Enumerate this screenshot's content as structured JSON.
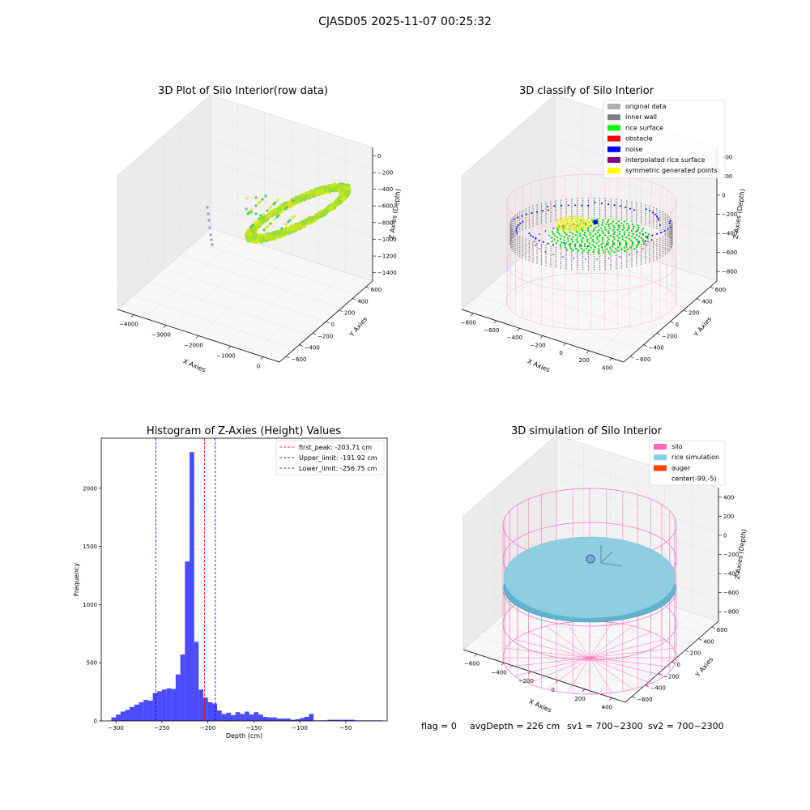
{
  "page": {
    "title": "CJASD05 2025-11-07 00:25:32",
    "footer": {
      "flag": "flag = 0",
      "avg": "avgDepth = 226 cm",
      "sv1": "sv1 = 700~2300",
      "sv2": "sv2 = 700~2300"
    }
  },
  "panels": {
    "raw": {
      "title": "3D Plot of Silo Interior(row data)",
      "xlabel": "X Axies",
      "ylabel": "Y Axies",
      "zlabel": "Z Axies (Depth)",
      "xticks": [
        "−4000",
        "−3000",
        "−2000",
        "−1000",
        "0"
      ],
      "yticks": [
        "600",
        "400",
        "200",
        "0",
        "−200",
        "−400",
        "−600"
      ],
      "zticks": [
        "0",
        "−200",
        "−400",
        "−600",
        "−800",
        "−1000",
        "−1200",
        "−1400"
      ]
    },
    "classify": {
      "title": "3D classify of Silo Interior",
      "xlabel": "X Axies",
      "ylabel": "Y Axies",
      "zlabel": "Z Axies (Depth)",
      "xticks": [
        "−800",
        "−600",
        "−400",
        "−200",
        "0",
        "200",
        "400"
      ],
      "yticks": [
        "600",
        "400",
        "200",
        "0",
        "−200",
        "−400",
        "−600"
      ],
      "zticks": [
        "400",
        "200",
        "0",
        "−200",
        "−400",
        "−600",
        "−800"
      ],
      "legend": [
        {
          "label": "original data",
          "color": "#b0b0b0"
        },
        {
          "label": "inner wall",
          "color": "#808080"
        },
        {
          "label": "rice surface",
          "color": "#00ff00"
        },
        {
          "label": "obstacle",
          "color": "#ff0000"
        },
        {
          "label": "noise",
          "color": "#0000ff"
        },
        {
          "label": "interpolated rice surface",
          "color": "#800080"
        },
        {
          "label": "symmetric generated points",
          "color": "#ffff00"
        }
      ]
    },
    "simulation": {
      "title": "3D simulation of Silo Interior",
      "xlabel": "X Axies",
      "ylabel": "Y Axies",
      "zlabel": "Z Axies (Depth)",
      "xticks": [
        "−600",
        "−400",
        "−200",
        "0",
        "200",
        "400"
      ],
      "yticks": [
        "600",
        "400",
        "200",
        "0",
        "−200",
        "−400",
        "−600"
      ],
      "zticks": [
        "400",
        "200",
        "0",
        "−200",
        "−400",
        "−600",
        "−800"
      ],
      "legend": [
        {
          "label": "silo",
          "color": "#ff69b4"
        },
        {
          "label": "rice simulation",
          "color": "#87ceeb"
        },
        {
          "label": "auger",
          "color": "#ff4500"
        },
        {
          "label": "center(-99,-5)",
          "color": ""
        }
      ]
    }
  },
  "chart_data": {
    "type": "bar",
    "title": "Histogram of Z-Axies (Height) Values",
    "xlabel": "Depth (cm)",
    "ylabel": "Frequency",
    "xlim": [
      -316,
      -5
    ],
    "ylim": [
      0,
      2430
    ],
    "xticks": [
      -300,
      -250,
      -200,
      -150,
      -100,
      -50
    ],
    "yticks": [
      0,
      500,
      1000,
      1500,
      2000
    ],
    "bin_width": 5,
    "bin_starts": [
      -305,
      -300,
      -295,
      -290,
      -285,
      -280,
      -275,
      -270,
      -265,
      -260,
      -255,
      -250,
      -245,
      -240,
      -235,
      -230,
      -225,
      -220,
      -215,
      -210,
      -205,
      -200,
      -195,
      -190,
      -185,
      -180,
      -175,
      -170,
      -165,
      -160,
      -155,
      -150,
      -145,
      -140,
      -135,
      -130,
      -125,
      -120,
      -115,
      -110,
      -105,
      -100,
      -95,
      -90,
      -85,
      -80,
      -75,
      -70,
      -65,
      -60,
      -55,
      -50,
      -45,
      -40,
      -35,
      -30,
      -25,
      -20,
      -15
    ],
    "values": [
      30,
      55,
      80,
      95,
      120,
      140,
      160,
      180,
      175,
      240,
      255,
      270,
      280,
      275,
      400,
      570,
      1370,
      2310,
      680,
      270,
      200,
      160,
      150,
      90,
      60,
      70,
      50,
      75,
      60,
      80,
      55,
      75,
      55,
      35,
      30,
      30,
      20,
      20,
      20,
      10,
      15,
      25,
      35,
      60,
      5,
      5,
      5,
      10,
      10,
      10,
      10,
      10,
      10,
      5,
      5,
      5,
      5,
      5,
      5
    ],
    "bar_color": "#0000ff",
    "bar_alpha": 0.7,
    "vlines": [
      {
        "label": "first_peak: -203.71 cm",
        "x": -203.71,
        "color": "#ff0000"
      },
      {
        "label": "Upper_limit: -191.92 cm",
        "x": -191.92,
        "color": "#0000cc"
      },
      {
        "label": "Lower_limit: -256.75 cm",
        "x": -256.75,
        "color": "#0000cc"
      }
    ],
    "legend_position": "top-right",
    "grid": false
  }
}
